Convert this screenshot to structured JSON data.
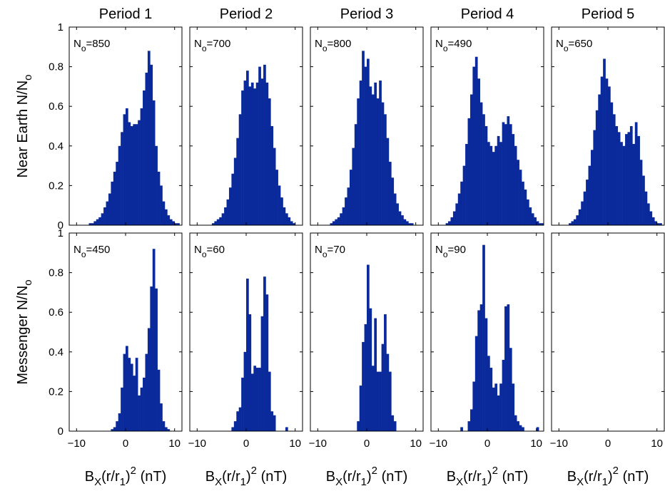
{
  "chart_data": {
    "type": "bar",
    "columns": [
      "Period 1",
      "Period 2",
      "Period 3",
      "Period 4",
      "Period 5"
    ],
    "rows": [
      {
        "ylabel_main": "Near Earth N/N",
        "ylabel_sub": "o"
      },
      {
        "ylabel_main": "Messenger N/N",
        "ylabel_sub": "o"
      }
    ],
    "xlabel": {
      "main": "B",
      "sub1": "X",
      "mid": "(r/r",
      "sub2": "1",
      "close": ")",
      "sup": "2",
      "unit": " (nT)"
    },
    "xlim": [
      -11.5,
      11.5
    ],
    "ylim": [
      0,
      1
    ],
    "bin_width": 0.5,
    "bin_start": -11,
    "x_ticks": [
      -10,
      0,
      10
    ],
    "y_ticks": [
      0,
      0.2,
      0.4,
      0.6,
      0.8,
      1
    ],
    "y_tick_labels": [
      "0",
      "0.2",
      "0.4",
      "0.6",
      "0.8",
      "1"
    ],
    "bar_color": "#0a2a9c",
    "panels": [
      {
        "row": 0,
        "col": 0,
        "n_label": "N",
        "n_sub": "o",
        "n_value": "=850",
        "values": [
          0,
          0,
          0,
          0,
          0,
          0,
          0,
          0.01,
          0.01,
          0.02,
          0.03,
          0.04,
          0.06,
          0.09,
          0.12,
          0.16,
          0.22,
          0.27,
          0.32,
          0.4,
          0.47,
          0.56,
          0.59,
          0.52,
          0.5,
          0.51,
          0.51,
          0.53,
          0.59,
          0.68,
          0.77,
          0.88,
          0.81,
          0.63,
          0.4,
          0.27,
          0.2,
          0.12,
          0.08,
          0.05,
          0.03,
          0.02,
          0.01,
          0.01,
          0,
          0
        ]
      },
      {
        "row": 0,
        "col": 1,
        "n_label": "N",
        "n_sub": "o",
        "n_value": "=700",
        "values": [
          0,
          0,
          0,
          0,
          0,
          0,
          0,
          0,
          0.01,
          0.02,
          0.03,
          0.04,
          0.06,
          0.09,
          0.13,
          0.19,
          0.26,
          0.34,
          0.44,
          0.56,
          0.68,
          0.73,
          0.78,
          0.7,
          0.72,
          0.69,
          0.72,
          0.8,
          0.74,
          0.81,
          0.72,
          0.64,
          0.5,
          0.39,
          0.28,
          0.2,
          0.14,
          0.09,
          0.06,
          0.04,
          0.02,
          0.01,
          0,
          0,
          0,
          0
        ]
      },
      {
        "row": 0,
        "col": 2,
        "n_label": "N",
        "n_sub": "o",
        "n_value": "=800",
        "values": [
          0,
          0,
          0,
          0,
          0,
          0,
          0,
          0.01,
          0.02,
          0.03,
          0.04,
          0.06,
          0.09,
          0.14,
          0.19,
          0.28,
          0.39,
          0.51,
          0.64,
          0.73,
          0.88,
          0.8,
          0.84,
          0.7,
          0.66,
          0.72,
          0.64,
          0.73,
          0.62,
          0.56,
          0.44,
          0.32,
          0.24,
          0.16,
          0.11,
          0.07,
          0.05,
          0.03,
          0.02,
          0.01,
          0.01,
          0,
          0,
          0,
          0,
          0
        ]
      },
      {
        "row": 0,
        "col": 3,
        "n_label": "N",
        "n_sub": "o",
        "n_value": "=490",
        "values": [
          0,
          0,
          0,
          0,
          0,
          0.01,
          0.02,
          0.04,
          0.07,
          0.11,
          0.16,
          0.22,
          0.3,
          0.41,
          0.54,
          0.66,
          0.8,
          0.85,
          0.74,
          0.62,
          0.56,
          0.5,
          0.42,
          0.4,
          0.37,
          0.4,
          0.45,
          0.42,
          0.52,
          0.51,
          0.55,
          0.51,
          0.46,
          0.4,
          0.33,
          0.28,
          0.22,
          0.18,
          0.13,
          0.09,
          0.06,
          0.04,
          0.02,
          0.01,
          0.01,
          0
        ]
      },
      {
        "row": 0,
        "col": 4,
        "n_label": "N",
        "n_sub": "o",
        "n_value": "=650",
        "values": [
          0,
          0,
          0,
          0,
          0,
          0,
          0.01,
          0.02,
          0.03,
          0.05,
          0.08,
          0.12,
          0.17,
          0.23,
          0.3,
          0.38,
          0.48,
          0.58,
          0.66,
          0.75,
          0.84,
          0.74,
          0.7,
          0.62,
          0.56,
          0.5,
          0.47,
          0.42,
          0.4,
          0.46,
          0.47,
          0.5,
          0.41,
          0.52,
          0.45,
          0.33,
          0.25,
          0.17,
          0.11,
          0.07,
          0.04,
          0.02,
          0.01,
          0.01,
          0,
          0
        ]
      },
      {
        "row": 1,
        "col": 0,
        "n_label": "N",
        "n_sub": "o",
        "n_value": "=450",
        "values": [
          0,
          0,
          0,
          0,
          0,
          0,
          0,
          0,
          0,
          0,
          0,
          0,
          0,
          0,
          0,
          0,
          0.01,
          0.02,
          0.05,
          0.09,
          0.22,
          0.39,
          0.43,
          0.37,
          0.34,
          0.28,
          0.37,
          0.18,
          0.22,
          0.27,
          0.39,
          0.52,
          0.73,
          0.92,
          0.72,
          0.31,
          0.14,
          0.05,
          0.02,
          0.01,
          0,
          0,
          0,
          0,
          0,
          0
        ]
      },
      {
        "row": 1,
        "col": 1,
        "n_label": "N",
        "n_sub": "o",
        "n_value": "=60",
        "values": [
          0,
          0,
          0,
          0,
          0,
          0,
          0,
          0,
          0,
          0,
          0,
          0,
          0,
          0,
          0,
          0,
          0.02,
          0.05,
          0.1,
          0.12,
          0.27,
          0.4,
          0.77,
          0.59,
          0.29,
          0.33,
          0.32,
          0.32,
          0.58,
          0.78,
          0.69,
          0.3,
          0.1,
          0.08,
          0,
          0,
          0,
          0,
          0.02,
          0,
          0,
          0,
          0,
          0,
          0,
          0
        ]
      },
      {
        "row": 1,
        "col": 2,
        "n_label": "N",
        "n_sub": "o",
        "n_value": "=70",
        "values": [
          0,
          0,
          0,
          0,
          0,
          0,
          0,
          0,
          0,
          0,
          0,
          0,
          0,
          0,
          0,
          0,
          0,
          0,
          0.05,
          0.23,
          0.45,
          0.54,
          0.84,
          0.62,
          0.33,
          0.57,
          0.3,
          0.3,
          0.44,
          0.59,
          0.39,
          0.3,
          0.08,
          0.05,
          0,
          0,
          0,
          0,
          0,
          0,
          0,
          0,
          0,
          0,
          0,
          0
        ]
      },
      {
        "row": 1,
        "col": 3,
        "n_label": "N",
        "n_sub": "o",
        "n_value": "=90",
        "values": [
          0,
          0,
          0,
          0,
          0,
          0,
          0,
          0,
          0,
          0,
          0,
          0.02,
          0,
          0,
          0.05,
          0.11,
          0.25,
          0.48,
          0.61,
          0.64,
          0.94,
          0.57,
          0.38,
          0.32,
          0.22,
          0.24,
          0.18,
          0.24,
          0.36,
          0.63,
          0.64,
          0.42,
          0.24,
          0.08,
          0.05,
          0.03,
          0.02,
          0,
          0,
          0,
          0,
          0,
          0.02,
          0,
          0,
          0
        ]
      },
      {
        "row": 1,
        "col": 4,
        "values": []
      }
    ]
  }
}
